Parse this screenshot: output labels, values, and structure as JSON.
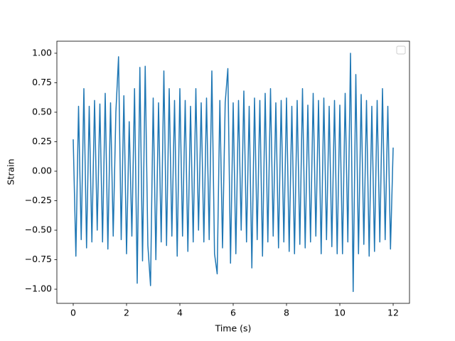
{
  "chart_data": {
    "type": "line",
    "xlabel": "Time (s)",
    "ylabel": "Strain",
    "color": "#1f77b4",
    "xlim": [
      -0.613,
      12.613
    ],
    "ylim": [
      -1.12,
      1.102
    ],
    "xticks": [
      0,
      2,
      4,
      6,
      8,
      10,
      12
    ],
    "yticks": [
      {
        "value": -1,
        "label": "−1.00"
      },
      {
        "value": -0.75,
        "label": "−0.75"
      },
      {
        "value": -0.5,
        "label": "−0.50"
      },
      {
        "value": -0.25,
        "label": "−0.25"
      },
      {
        "value": 0,
        "label": "0.00"
      },
      {
        "value": 0.25,
        "label": "0.25"
      },
      {
        "value": 0.5,
        "label": "0.50"
      },
      {
        "value": 0.75,
        "label": "0.75"
      },
      {
        "value": 1,
        "label": "1.00"
      }
    ],
    "x": [
      0.0,
      0.1,
      0.2,
      0.3,
      0.4,
      0.5,
      0.6,
      0.7,
      0.8,
      0.9,
      1.0,
      1.1,
      1.2,
      1.3,
      1.4,
      1.5,
      1.6,
      1.7,
      1.8,
      1.9,
      2.0,
      2.1,
      2.2,
      2.3,
      2.4,
      2.5,
      2.6,
      2.7,
      2.8,
      2.9,
      3.0,
      3.1,
      3.2,
      3.3,
      3.4,
      3.5,
      3.6,
      3.7,
      3.8,
      3.9,
      4.0,
      4.1,
      4.2,
      4.3,
      4.4,
      4.5,
      4.6,
      4.7,
      4.8,
      4.9,
      5.0,
      5.1,
      5.2,
      5.3,
      5.4,
      5.5,
      5.6,
      5.7,
      5.8,
      5.9,
      6.0,
      6.1,
      6.2,
      6.3,
      6.4,
      6.5,
      6.6,
      6.7,
      6.8,
      6.9,
      7.0,
      7.1,
      7.2,
      7.3,
      7.4,
      7.5,
      7.6,
      7.7,
      7.8,
      7.9,
      8.0,
      8.1,
      8.2,
      8.3,
      8.4,
      8.5,
      8.6,
      8.7,
      8.8,
      8.9,
      9.0,
      9.1,
      9.2,
      9.3,
      9.4,
      9.5,
      9.6,
      9.7,
      9.8,
      9.9,
      10.0,
      10.1,
      10.2,
      10.3,
      10.4,
      10.5,
      10.6,
      10.7,
      10.8,
      10.9,
      11.0,
      11.1,
      11.2,
      11.3,
      11.4,
      11.5,
      11.6,
      11.7,
      11.8,
      11.9,
      12.0
    ],
    "values": [
      0.27,
      -0.72,
      0.55,
      -0.58,
      0.7,
      -0.65,
      0.55,
      -0.6,
      0.6,
      -0.5,
      0.57,
      -0.6,
      0.66,
      -0.66,
      0.58,
      -0.55,
      0.5,
      0.97,
      -0.58,
      0.64,
      -0.7,
      0.42,
      -0.55,
      0.7,
      -0.95,
      0.88,
      -0.76,
      0.89,
      -0.63,
      -0.97,
      0.62,
      -0.75,
      0.58,
      -0.6,
      0.85,
      -0.63,
      0.7,
      -0.55,
      0.6,
      -0.72,
      0.7,
      -0.55,
      0.6,
      -0.68,
      0.55,
      -0.6,
      0.7,
      -0.5,
      0.58,
      -0.6,
      0.62,
      -0.58,
      0.85,
      -0.7,
      -0.87,
      0.6,
      -0.65,
      0.58,
      0.87,
      -0.78,
      0.58,
      -0.7,
      0.6,
      -0.5,
      0.68,
      -0.6,
      0.55,
      -0.82,
      0.62,
      -0.58,
      0.6,
      -0.72,
      0.66,
      -0.6,
      0.7,
      -0.55,
      0.58,
      -0.65,
      0.6,
      -0.6,
      0.62,
      -0.68,
      0.55,
      -0.7,
      0.6,
      -0.62,
      0.7,
      -0.65,
      0.56,
      -0.6,
      0.66,
      -0.55,
      0.6,
      -0.7,
      0.62,
      -0.58,
      0.55,
      -0.64,
      0.6,
      -0.7,
      0.56,
      -0.7,
      0.66,
      -0.6,
      1.0,
      -1.02,
      0.82,
      -0.7,
      0.65,
      -0.62,
      0.6,
      -0.72,
      0.55,
      -0.68,
      0.6,
      -0.6,
      0.7,
      -0.58,
      0.55,
      -0.66,
      0.2
    ]
  }
}
